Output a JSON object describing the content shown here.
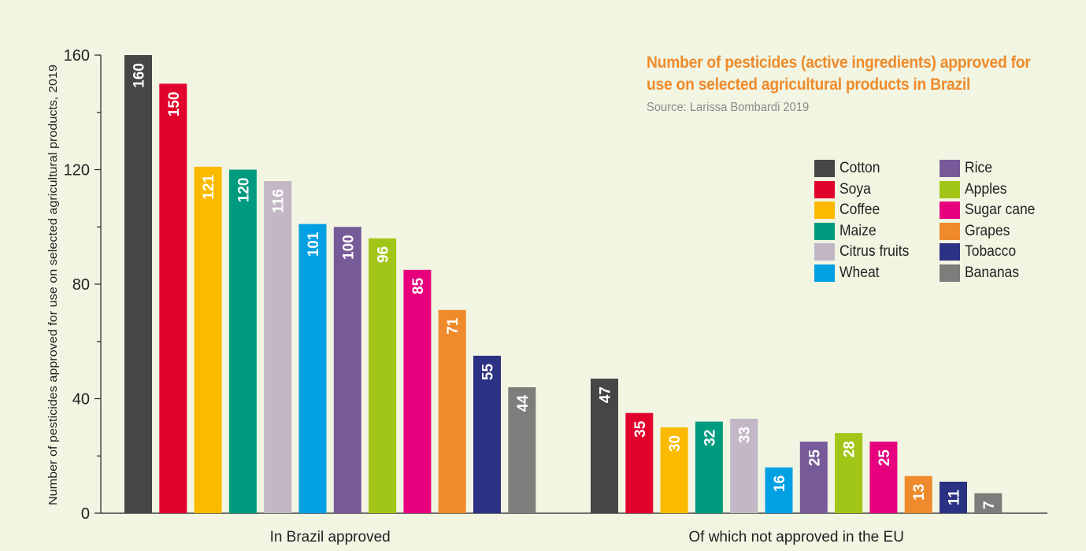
{
  "chart_data": {
    "type": "bar",
    "title": "Number of pesticides (active ingredients) approved for use on selected agricultural products in Brazil",
    "subtitle": "Source: Larissa Bombardi 2019",
    "ylabel": "Number of pesticides approved for use on selected agricultural products, 2019",
    "xlabel": "",
    "ylim": [
      0,
      160
    ],
    "yticks": [
      0,
      40,
      80,
      120,
      160
    ],
    "groups": [
      "In Brazil approved",
      "Of which not approved in the EU"
    ],
    "legend_position": "right",
    "series": [
      {
        "name": "Cotton",
        "color": "#474645",
        "values": [
          160,
          47
        ]
      },
      {
        "name": "Soya",
        "color": "#e2032d",
        "values": [
          150,
          35
        ]
      },
      {
        "name": "Coffee",
        "color": "#fbba00",
        "values": [
          121,
          30
        ]
      },
      {
        "name": "Maize",
        "color": "#009b7f",
        "values": [
          120,
          32
        ]
      },
      {
        "name": "Citrus fruits",
        "color": "#c3b7c6",
        "values": [
          116,
          33
        ]
      },
      {
        "name": "Wheat",
        "color": "#00a0e3",
        "values": [
          101,
          16
        ]
      },
      {
        "name": "Rice",
        "color": "#775b98",
        "values": [
          100,
          25
        ]
      },
      {
        "name": "Apples",
        "color": "#a2c617",
        "values": [
          96,
          28
        ]
      },
      {
        "name": "Sugar cane",
        "color": "#e6007e",
        "values": [
          85,
          25
        ]
      },
      {
        "name": "Grapes",
        "color": "#ef8b2c",
        "values": [
          71,
          13
        ]
      },
      {
        "name": "Tobacco",
        "color": "#2b3183",
        "values": [
          55,
          11
        ]
      },
      {
        "name": "Bananas",
        "color": "#7d7d7c",
        "values": [
          44,
          7
        ]
      }
    ]
  }
}
